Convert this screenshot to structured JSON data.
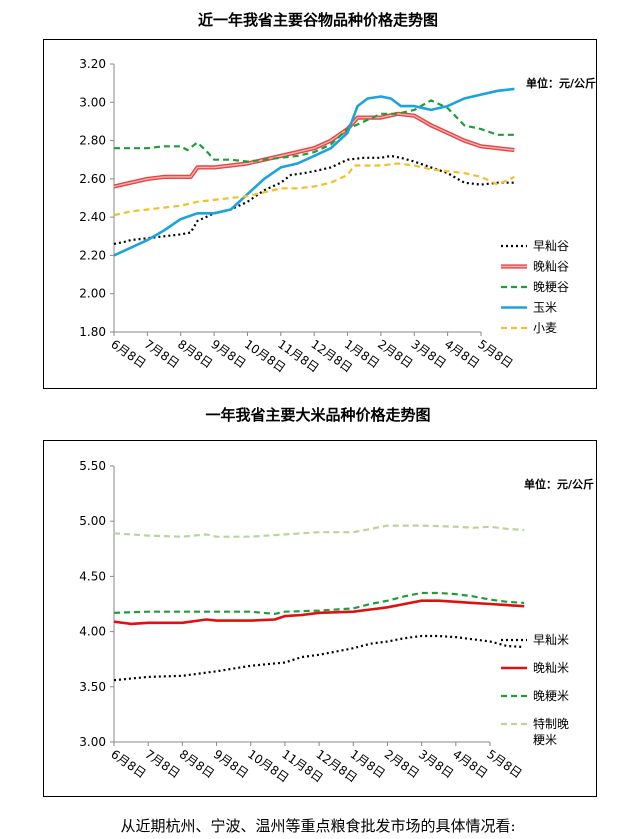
{
  "page": {
    "title1": "近一年我省主要谷物品种价格走势图",
    "title2": "一年我省主要大米品种价格走势图",
    "footer": "从近期杭州、宁波、温州等重点粮食批发市场的具体情况看:"
  },
  "chart_data": [
    {
      "type": "line",
      "title": "近一年我省主要谷物品种价格走势图",
      "unit_label": "单位：元/公斤",
      "categories": [
        "6月8日",
        "7月8日",
        "8月8日",
        "9月8日",
        "10月8日",
        "11月8日",
        "12月8日",
        "1月8日",
        "2月8日",
        "3月8日",
        "4月8日",
        "5月8日"
      ],
      "ylim": [
        1.8,
        3.2
      ],
      "yticks": [
        "3.20",
        "3.00",
        "2.80",
        "2.60",
        "2.40",
        "2.20",
        "2.00",
        "1.80"
      ],
      "ytick_values": [
        3.2,
        3.0,
        2.8,
        2.6,
        2.4,
        2.2,
        2.0,
        1.8
      ],
      "grid": false,
      "legend": "right",
      "series": [
        {
          "name": "早籼谷",
          "color": "#000000",
          "style": "dotted",
          "x": [
            0,
            0.3,
            0.5,
            1,
            1.5,
            2,
            2.3,
            2.5,
            3,
            3.5,
            4,
            4.5,
            5,
            5.3,
            5.7,
            6,
            6.5,
            7,
            7.5,
            8,
            8.3,
            8.6,
            9,
            9.5,
            10,
            10.5,
            11,
            11.5,
            12
          ],
          "values": [
            2.26,
            2.27,
            2.28,
            2.29,
            2.3,
            2.31,
            2.32,
            2.38,
            2.42,
            2.44,
            2.48,
            2.54,
            2.58,
            2.62,
            2.63,
            2.64,
            2.66,
            2.7,
            2.71,
            2.71,
            2.72,
            2.71,
            2.69,
            2.66,
            2.63,
            2.58,
            2.57,
            2.58,
            2.58
          ]
        },
        {
          "name": "晚籼谷",
          "color": "#e84444",
          "style": "double",
          "x": [
            0,
            0.5,
            1,
            1.5,
            2,
            2.3,
            2.5,
            3,
            3.5,
            4,
            4.5,
            5,
            5.5,
            6,
            6.5,
            7,
            7.3,
            7.6,
            8,
            8.5,
            9,
            9.5,
            10,
            10.5,
            11,
            11.5,
            12
          ],
          "values": [
            2.56,
            2.58,
            2.6,
            2.61,
            2.61,
            2.61,
            2.66,
            2.66,
            2.67,
            2.68,
            2.7,
            2.72,
            2.74,
            2.76,
            2.8,
            2.86,
            2.92,
            2.92,
            2.92,
            2.94,
            2.93,
            2.88,
            2.84,
            2.8,
            2.77,
            2.76,
            2.75
          ]
        },
        {
          "name": "晚粳谷",
          "color": "#1e9e3a",
          "style": "dashed",
          "x": [
            0,
            1,
            1.5,
            2,
            2.2,
            2.5,
            2.8,
            3,
            3.5,
            4,
            4.5,
            5,
            5.5,
            6,
            6.5,
            7,
            7.5,
            8,
            8.5,
            9,
            9.5,
            10,
            10.5,
            11,
            11.5,
            12
          ],
          "values": [
            2.76,
            2.76,
            2.77,
            2.77,
            2.75,
            2.79,
            2.74,
            2.7,
            2.7,
            2.69,
            2.7,
            2.71,
            2.72,
            2.74,
            2.78,
            2.86,
            2.9,
            2.94,
            2.94,
            2.96,
            3.01,
            2.97,
            2.88,
            2.86,
            2.83,
            2.83
          ]
        },
        {
          "name": "玉米",
          "color": "#1aa3de",
          "style": "solid",
          "x": [
            0,
            0.5,
            1,
            1.5,
            2,
            2.5,
            3,
            3.5,
            4,
            4.5,
            5,
            5.5,
            6,
            6.5,
            7,
            7.3,
            7.6,
            8,
            8.3,
            8.6,
            9,
            9.5,
            10,
            10.5,
            11,
            11.5,
            12
          ],
          "values": [
            2.2,
            2.24,
            2.28,
            2.33,
            2.39,
            2.42,
            2.42,
            2.44,
            2.52,
            2.6,
            2.66,
            2.68,
            2.72,
            2.76,
            2.84,
            2.98,
            3.02,
            3.03,
            3.02,
            2.98,
            2.98,
            2.96,
            2.98,
            3.02,
            3.04,
            3.06,
            3.07
          ]
        },
        {
          "name": "小麦",
          "color": "#f2c02a",
          "style": "dashed",
          "x": [
            0,
            0.5,
            1,
            1.5,
            2,
            2.5,
            3,
            3.5,
            4,
            4.5,
            5,
            5.5,
            6,
            6.5,
            7,
            7.2,
            7.5,
            8,
            8.5,
            9,
            9.5,
            10,
            10.5,
            11,
            11.5,
            12
          ],
          "values": [
            2.41,
            2.43,
            2.44,
            2.45,
            2.46,
            2.48,
            2.49,
            2.5,
            2.51,
            2.53,
            2.55,
            2.55,
            2.56,
            2.58,
            2.62,
            2.67,
            2.67,
            2.67,
            2.68,
            2.67,
            2.65,
            2.64,
            2.63,
            2.61,
            2.57,
            2.61
          ]
        }
      ]
    },
    {
      "type": "line",
      "title": "一年我省主要大米品种价格走势图",
      "unit_label": "单位：元/公斤",
      "categories": [
        "6月8日",
        "7月8日",
        "8月8日",
        "9月8日",
        "10月8日",
        "11月8日",
        "12月8日",
        "1月8日",
        "2月8日",
        "3月8日",
        "4月8日",
        "5月8日"
      ],
      "ylim": [
        3.0,
        5.5
      ],
      "yticks": [
        "5.50",
        "5.00",
        "4.50",
        "4.00",
        "3.50",
        "3.00"
      ],
      "ytick_values": [
        5.5,
        5.0,
        4.5,
        4.0,
        3.5,
        3.0
      ],
      "grid": false,
      "legend": "right",
      "series": [
        {
          "name": "早籼米",
          "color": "#000000",
          "style": "dotted",
          "x": [
            0,
            1,
            2,
            3,
            4,
            5,
            5.5,
            6,
            6.5,
            7,
            7.5,
            8,
            8.5,
            9,
            9.5,
            10,
            10.5,
            11,
            11.5,
            12
          ],
          "values": [
            3.56,
            3.59,
            3.6,
            3.64,
            3.69,
            3.72,
            3.77,
            3.79,
            3.82,
            3.85,
            3.89,
            3.91,
            3.94,
            3.96,
            3.96,
            3.95,
            3.93,
            3.91,
            3.87,
            3.86
          ]
        },
        {
          "name": "晚籼米",
          "color": "#e01010",
          "style": "solid",
          "x": [
            0,
            0.5,
            1,
            2,
            2.7,
            3,
            4,
            4.7,
            5,
            5.5,
            6,
            7,
            7.5,
            8,
            8.5,
            9,
            9.5,
            10,
            10.5,
            11,
            11.5,
            12
          ],
          "values": [
            4.09,
            4.07,
            4.08,
            4.08,
            4.11,
            4.1,
            4.1,
            4.11,
            4.14,
            4.15,
            4.17,
            4.18,
            4.2,
            4.22,
            4.25,
            4.28,
            4.28,
            4.27,
            4.26,
            4.25,
            4.24,
            4.23
          ]
        },
        {
          "name": "晚粳米",
          "color": "#1e9e3a",
          "style": "dashed",
          "x": [
            0,
            1,
            2,
            3,
            4,
            4.7,
            5,
            6,
            7,
            7.5,
            8,
            8.5,
            9,
            9.5,
            10,
            10.5,
            11,
            11.5,
            12
          ],
          "values": [
            4.17,
            4.18,
            4.18,
            4.18,
            4.18,
            4.16,
            4.18,
            4.19,
            4.21,
            4.25,
            4.28,
            4.32,
            4.35,
            4.35,
            4.34,
            4.32,
            4.29,
            4.27,
            4.26
          ]
        },
        {
          "name": "特制晚粳米",
          "color": "#bcd39a",
          "style": "dashed",
          "x": [
            0,
            1,
            2,
            2.7,
            3,
            4,
            5,
            6,
            7,
            7.5,
            8,
            9,
            10,
            10.5,
            11,
            11.5,
            12
          ],
          "values": [
            4.89,
            4.87,
            4.86,
            4.88,
            4.86,
            4.86,
            4.88,
            4.9,
            4.9,
            4.93,
            4.96,
            4.96,
            4.95,
            4.94,
            4.95,
            4.93,
            4.92
          ]
        }
      ]
    }
  ]
}
